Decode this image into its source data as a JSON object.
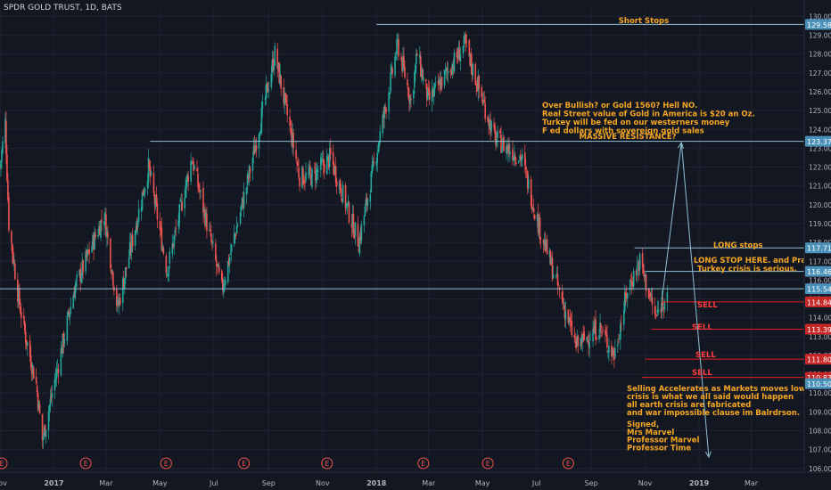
{
  "symbol_title": "SPDR GOLD TRUST, 1D, BATS",
  "colors": {
    "background": "#131722",
    "up": "#26a69a",
    "down": "#ef5350",
    "level_line": "#8fc1d4",
    "sell_line": "#e51c23",
    "annotation_text": "#f5a623",
    "sell_text": "#ff3b3b",
    "axis_text": "#b2b5be",
    "grid": "#1f2330"
  },
  "chart_data": {
    "type": "candlestick",
    "title": "SPDR GOLD TRUST, 1D, BATS",
    "xlabel": "",
    "ylabel": "",
    "ylim": [
      105.8,
      130.4
    ],
    "x_range": [
      "2016-11-01",
      "2019-04-30"
    ],
    "x_ticks": [
      {
        "date": "2016-11-01",
        "label": "Nov"
      },
      {
        "date": "2017-01-01",
        "label": "2017"
      },
      {
        "date": "2017-03-01",
        "label": "Mar"
      },
      {
        "date": "2017-05-01",
        "label": "May"
      },
      {
        "date": "2017-07-01",
        "label": "Jul"
      },
      {
        "date": "2017-09-01",
        "label": "Sep"
      },
      {
        "date": "2017-11-01",
        "label": "Nov"
      },
      {
        "date": "2018-01-01",
        "label": "2018"
      },
      {
        "date": "2018-03-01",
        "label": "Mar"
      },
      {
        "date": "2018-05-01",
        "label": "May"
      },
      {
        "date": "2018-07-01",
        "label": "Jul"
      },
      {
        "date": "2018-09-01",
        "label": "Sep"
      },
      {
        "date": "2018-11-01",
        "label": "Nov"
      },
      {
        "date": "2019-01-01",
        "label": "2019"
      },
      {
        "date": "2019-03-01",
        "label": "Mar"
      }
    ],
    "y_ticks": [
      106,
      107,
      108,
      109,
      110,
      111,
      112,
      113,
      114,
      115,
      116,
      117,
      118,
      119,
      120,
      121,
      122,
      123,
      124,
      125,
      126,
      127,
      128,
      129,
      130
    ],
    "y_tick_labels": [
      "106.00",
      "107.00",
      "108.00",
      "109.00",
      "110.00",
      "111.00",
      "112.00",
      "113.00",
      "114.00",
      "115.00",
      "116.00",
      "117.00",
      "118.00",
      "119.00",
      "120.00",
      "121.00",
      "122.00",
      "123.00",
      "124.00",
      "125.00",
      "126.00",
      "127.00",
      "128.00",
      "129.00",
      "130.00"
    ],
    "price_path": [
      {
        "date": "2016-11-01",
        "price": 122.0
      },
      {
        "date": "2016-11-07",
        "price": 124.4
      },
      {
        "date": "2016-11-11",
        "price": 119.0
      },
      {
        "date": "2016-11-22",
        "price": 115.0
      },
      {
        "date": "2016-11-30",
        "price": 113.0
      },
      {
        "date": "2016-12-12",
        "price": 110.5
      },
      {
        "date": "2016-12-19",
        "price": 107.5
      },
      {
        "date": "2016-12-30",
        "price": 110.0
      },
      {
        "date": "2017-01-24",
        "price": 115.5
      },
      {
        "date": "2017-02-27",
        "price": 119.5
      },
      {
        "date": "2017-03-14",
        "price": 114.5
      },
      {
        "date": "2017-04-18",
        "price": 122.0
      },
      {
        "date": "2017-05-09",
        "price": 116.5
      },
      {
        "date": "2017-06-06",
        "price": 122.5
      },
      {
        "date": "2017-07-10",
        "price": 115.5
      },
      {
        "date": "2017-08-07",
        "price": 121.0
      },
      {
        "date": "2017-09-08",
        "price": 128.0
      },
      {
        "date": "2017-10-06",
        "price": 121.5
      },
      {
        "date": "2017-10-20",
        "price": 121.5
      },
      {
        "date": "2017-11-10",
        "price": 122.5
      },
      {
        "date": "2017-12-12",
        "price": 118.0
      },
      {
        "date": "2018-01-25",
        "price": 128.5
      },
      {
        "date": "2018-02-09",
        "price": 125.5
      },
      {
        "date": "2018-02-16",
        "price": 128.0
      },
      {
        "date": "2018-03-01",
        "price": 125.5
      },
      {
        "date": "2018-04-11",
        "price": 128.5
      },
      {
        "date": "2018-05-15",
        "price": 123.5
      },
      {
        "date": "2018-06-14",
        "price": 122.5
      },
      {
        "date": "2018-07-03",
        "price": 119.0
      },
      {
        "date": "2018-08-15",
        "price": 112.5
      },
      {
        "date": "2018-09-10",
        "price": 113.5
      },
      {
        "date": "2018-09-27",
        "price": 112.0
      },
      {
        "date": "2018-10-12",
        "price": 115.5
      },
      {
        "date": "2018-10-26",
        "price": 117.0
      },
      {
        "date": "2018-11-13",
        "price": 114.0
      },
      {
        "date": "2018-11-26",
        "price": 115.5
      }
    ],
    "price_levels": [
      {
        "name": "short-stops",
        "price": 129.58,
        "label": "129.58",
        "from": "2018-01-01",
        "to": "2019-04-30",
        "style": "level"
      },
      {
        "name": "massive-resistance",
        "price": 123.37,
        "label": "123.37",
        "from": "2017-04-20",
        "to": "2019-04-30",
        "style": "level"
      },
      {
        "name": "long-stops",
        "price": 117.71,
        "label": "117.71",
        "from": "2018-10-20",
        "to": "2019-04-30",
        "style": "level"
      },
      {
        "name": "long-stop-here",
        "price": 116.46,
        "label": "116.46",
        "from": "2018-11-01",
        "to": "2019-04-30",
        "style": "level"
      },
      {
        "name": "current-price",
        "price": 115.54,
        "label": "115.54",
        "from": "2016-11-01",
        "to": "2019-04-30",
        "style": "level"
      },
      {
        "name": "sell-1",
        "price": 114.84,
        "label": "114.84",
        "from": "2018-11-20",
        "to": "2019-04-30",
        "style": "sell"
      },
      {
        "name": "sell-2",
        "price": 113.39,
        "label": "113.39",
        "from": "2018-11-08",
        "to": "2019-04-30",
        "style": "sell"
      },
      {
        "name": "sell-3",
        "price": 111.8,
        "label": "111.80",
        "from": "2018-11-01",
        "to": "2019-04-30",
        "style": "sell"
      },
      {
        "name": "sell-4",
        "price": 110.83,
        "label": "110.83",
        "from": "2018-10-28",
        "to": "2019-04-30",
        "style": "sell"
      },
      {
        "name": "level-110-50",
        "price": 110.5,
        "label": "110.50",
        "from": "2019-04-30",
        "to": "2019-04-30",
        "style": "tag"
      }
    ],
    "projection_path": [
      {
        "date": "2018-11-20",
        "price": 115.0
      },
      {
        "date": "2018-12-12",
        "price": 123.3
      },
      {
        "date": "2019-01-12",
        "price": 106.6
      }
    ],
    "earnings_markers": [
      "2016-11-03",
      "2017-02-06",
      "2017-05-08",
      "2017-08-04",
      "2017-11-06",
      "2018-02-23",
      "2018-05-07",
      "2018-08-06"
    ],
    "earnings_label": "E"
  },
  "annotations": {
    "short_stops": "Short Stops",
    "over_bullish": [
      "Over Bullish? or Gold 1560? Hell NO.",
      "Real Street value of Gold in America is $20 an Oz.",
      " Turkey will be fed on our westerners money",
      "F ed dollars with sovereign gold sales"
    ],
    "massive_resistance": "MASSIVE RESISTANCE?",
    "long_stops": "LONG stops",
    "long_stop_here": [
      "LONG STOP HERE. and Pray",
      "Turkey crisis is serious."
    ],
    "sell": "SELL",
    "selling_accelerates": [
      "Selling Accelerates as Markets moves lower as",
      "crisis is what we all said would happen",
      "all earth crisis are fabricated",
      "and war impossible clause im Balrdrson."
    ],
    "signed": [
      " Signed,",
      "Mrs Marvel",
      "Professor Marvel",
      "Professor Time"
    ]
  }
}
